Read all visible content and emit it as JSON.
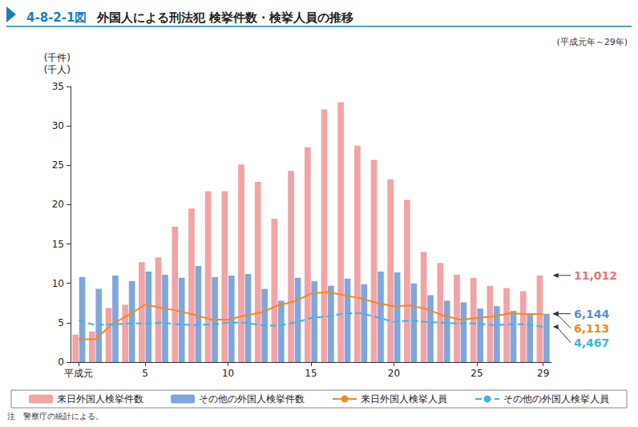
{
  "chart_data": {
    "type": "bar",
    "title": "4-8-2-1図 外国人による刑法犯 検挙件数・検挙人員の推移",
    "subtitle": "(平成元年～29年)",
    "y_label": "(千件)\n(千人)",
    "note": "注　警察庁の統計による。",
    "categories": [
      "平成元",
      null,
      null,
      null,
      "5",
      null,
      null,
      null,
      null,
      "10",
      null,
      null,
      null,
      null,
      "15",
      null,
      null,
      null,
      null,
      "20",
      null,
      null,
      null,
      null,
      "25",
      null,
      null,
      null,
      "29"
    ],
    "series": [
      {
        "name": "来日外国人検挙件数",
        "type": "bar",
        "color": "#f2a3a6",
        "values": [
          3.5,
          3.9,
          6.9,
          7.3,
          12.7,
          13.3,
          17.2,
          19.5,
          21.7,
          21.7,
          25.1,
          22.9,
          18.2,
          24.3,
          27.3,
          32.1,
          33.0,
          27.5,
          25.7,
          23.2,
          20.6,
          14.0,
          12.6,
          11.1,
          10.7,
          9.7,
          9.4,
          9.0,
          11.012
        ]
      },
      {
        "name": "その他の外国人検挙件数",
        "type": "bar",
        "color": "#7fa7dd",
        "values": [
          10.8,
          9.3,
          11.0,
          10.3,
          11.5,
          11.1,
          10.7,
          12.2,
          10.8,
          11.0,
          11.2,
          9.3,
          7.8,
          10.7,
          10.3,
          9.7,
          10.6,
          9.9,
          11.5,
          11.4,
          10.0,
          8.5,
          7.8,
          7.6,
          6.8,
          7.1,
          6.5,
          6.2,
          6.144
        ]
      },
      {
        "name": "来日外国人検挙人員",
        "type": "line",
        "line_style": "solid",
        "color": "#f08a1c",
        "values": [
          2.9,
          2.9,
          4.8,
          6.0,
          7.3,
          6.9,
          6.5,
          6.0,
          5.4,
          5.4,
          5.9,
          6.3,
          7.2,
          7.7,
          8.7,
          8.9,
          8.5,
          8.1,
          7.5,
          7.1,
          7.2,
          6.7,
          5.9,
          5.4,
          5.6,
          5.8,
          6.2,
          6.1,
          6.113
        ]
      },
      {
        "name": "その他の外国人検挙人員",
        "type": "line",
        "line_style": "dashed",
        "color": "#3cb4e6",
        "values": [
          5.3,
          4.7,
          4.8,
          4.9,
          4.9,
          5.0,
          4.8,
          4.7,
          4.8,
          5.0,
          5.0,
          4.7,
          4.6,
          5.0,
          5.6,
          5.8,
          6.2,
          6.2,
          5.7,
          5.1,
          5.3,
          5.1,
          5.0,
          4.9,
          4.9,
          4.7,
          4.8,
          4.8,
          4.467
        ]
      }
    ],
    "ylim": [
      0,
      35
    ],
    "yticks": [
      0,
      5,
      10,
      15,
      20,
      25,
      30,
      35
    ],
    "grid": false,
    "legend": "bottom",
    "annotations": [
      {
        "text": "11,012",
        "series": "来日外国人検挙件数",
        "color": "#e8737a"
      },
      {
        "text": "6,144",
        "series": "その他の外国人検挙件数",
        "color": "#5b8fd0"
      },
      {
        "text": "6,113",
        "series": "来日外国人検挙人員",
        "color": "#f08a1c"
      },
      {
        "text": "4,467",
        "series": "その他の外国人検挙人員",
        "color": "#3cb4e6"
      }
    ]
  }
}
